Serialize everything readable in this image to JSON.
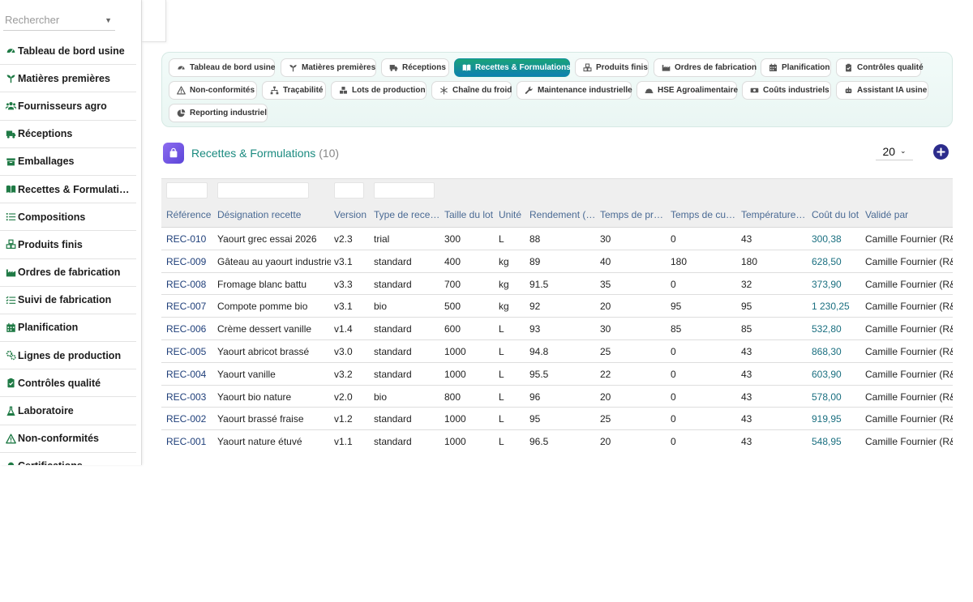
{
  "sidebar": {
    "search_placeholder": "Rechercher",
    "items": [
      {
        "label": "Tableau de bord usine",
        "icon": "gauge-icon"
      },
      {
        "label": "Matières premières",
        "icon": "seedling-icon"
      },
      {
        "label": "Fournisseurs agro",
        "icon": "users-icon"
      },
      {
        "label": "Réceptions",
        "icon": "truck-icon"
      },
      {
        "label": "Emballages",
        "icon": "box-icon"
      },
      {
        "label": "Recettes & Formulati…",
        "icon": "book-icon"
      },
      {
        "label": "Compositions",
        "icon": "list-icon"
      },
      {
        "label": "Produits finis",
        "icon": "cubes-icon"
      },
      {
        "label": "Ordres de fabrication",
        "icon": "industry-icon"
      },
      {
        "label": "Suivi de fabrication",
        "icon": "list-check-icon"
      },
      {
        "label": "Planification",
        "icon": "calendar-icon"
      },
      {
        "label": "Lignes de production",
        "icon": "gears-icon"
      },
      {
        "label": "Contrôles qualité",
        "icon": "clipboard-check-icon"
      },
      {
        "label": "Laboratoire",
        "icon": "flask-icon"
      },
      {
        "label": "Non-conformités",
        "icon": "warning-icon"
      },
      {
        "label": "Certifications",
        "icon": "certificate-icon"
      }
    ]
  },
  "tabs": [
    {
      "label": "Tableau de bord usine",
      "icon": "gauge-icon",
      "active": false
    },
    {
      "label": "Matières premières",
      "icon": "seedling-icon",
      "active": false
    },
    {
      "label": "Réceptions",
      "icon": "truck-icon",
      "active": false
    },
    {
      "label": "Recettes & Formulations",
      "icon": "book-icon",
      "active": true
    },
    {
      "label": "Produits finis",
      "icon": "cubes-icon",
      "active": false
    },
    {
      "label": "Ordres de fabrication",
      "icon": "industry-icon",
      "active": false
    },
    {
      "label": "Planification",
      "icon": "calendar-icon",
      "active": false
    },
    {
      "label": "Contrôles qualité",
      "icon": "clipboard-check-icon",
      "active": false
    },
    {
      "label": "Non-conformités",
      "icon": "warning-icon",
      "active": false
    },
    {
      "label": "Traçabilité",
      "icon": "sitemap-icon",
      "active": false
    },
    {
      "label": "Lots de production",
      "icon": "boxes-icon",
      "active": false
    },
    {
      "label": "Chaîne du froid",
      "icon": "snowflake-icon",
      "active": false
    },
    {
      "label": "Maintenance industrielle",
      "icon": "wrench-icon",
      "active": false
    },
    {
      "label": "HSE Agroalimentaire",
      "icon": "helmet-icon",
      "active": false
    },
    {
      "label": "Coûts industriels",
      "icon": "money-icon",
      "active": false
    },
    {
      "label": "Assistant IA usine",
      "icon": "robot-icon",
      "active": false
    },
    {
      "label": "Reporting industriel",
      "icon": "chart-pie-icon",
      "active": false
    }
  ],
  "page": {
    "title": "Recettes & Formulations",
    "count": "(10)",
    "page_size": "20"
  },
  "table": {
    "columns": [
      "Référence",
      "Désignation recette",
      "Version",
      "Type de rece…",
      "Taille du lot",
      "Unité",
      "Rendement (…",
      "Temps de pr…",
      "Temps de cu…",
      "Température…",
      "Coût du lot",
      "Validé par"
    ],
    "rows": [
      [
        "REC-010",
        "Yaourt grec essai 2026",
        "v2.3",
        "trial",
        "300",
        "L",
        "88",
        "30",
        "0",
        "43",
        "300,38",
        "Camille Fournier (R&D"
      ],
      [
        "REC-009",
        "Gâteau au yaourt industriel",
        "v3.1",
        "standard",
        "400",
        "kg",
        "89",
        "40",
        "180",
        "180",
        "628,50",
        "Camille Fournier (R&D"
      ],
      [
        "REC-008",
        "Fromage blanc battu",
        "v3.3",
        "standard",
        "700",
        "kg",
        "91.5",
        "35",
        "0",
        "32",
        "373,90",
        "Camille Fournier (R&D"
      ],
      [
        "REC-007",
        "Compote pomme bio",
        "v3.1",
        "bio",
        "500",
        "kg",
        "92",
        "20",
        "95",
        "95",
        "1 230,25",
        "Camille Fournier (R&D"
      ],
      [
        "REC-006",
        "Crème dessert vanille",
        "v1.4",
        "standard",
        "600",
        "L",
        "93",
        "30",
        "85",
        "85",
        "532,80",
        "Camille Fournier (R&D"
      ],
      [
        "REC-005",
        "Yaourt abricot brassé",
        "v3.0",
        "standard",
        "1000",
        "L",
        "94.8",
        "25",
        "0",
        "43",
        "868,30",
        "Camille Fournier (R&D"
      ],
      [
        "REC-004",
        "Yaourt vanille",
        "v3.2",
        "standard",
        "1000",
        "L",
        "95.5",
        "22",
        "0",
        "43",
        "603,90",
        "Camille Fournier (R&D"
      ],
      [
        "REC-003",
        "Yaourt bio nature",
        "v2.0",
        "bio",
        "800",
        "L",
        "96",
        "20",
        "0",
        "43",
        "578,00",
        "Camille Fournier (R&D"
      ],
      [
        "REC-002",
        "Yaourt brassé fraise",
        "v1.2",
        "standard",
        "1000",
        "L",
        "95",
        "25",
        "0",
        "43",
        "919,95",
        "Camille Fournier (R&D"
      ],
      [
        "REC-001",
        "Yaourt nature étuvé",
        "v1.1",
        "standard",
        "1000",
        "L",
        "96.5",
        "20",
        "0",
        "43",
        "548,95",
        "Camille Fournier (R&D"
      ]
    ]
  },
  "colors": {
    "accent_green": "#1f7a45",
    "tab_active_from": "#1aa37a",
    "tab_active_to": "#0e7fb0",
    "title_teal": "#1a8a7f",
    "add_button": "#2c2c8c"
  }
}
